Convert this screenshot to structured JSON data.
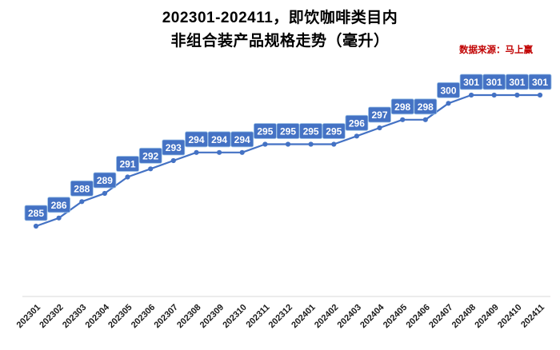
{
  "title": {
    "line1": "202301-202411，即饮咖啡类目内",
    "line2": "非组合装产品规格走势（毫升）"
  },
  "source": {
    "text": "数据来源：马上赢",
    "color": "#C00000"
  },
  "chart_data": {
    "type": "line",
    "title": "202301-202411，即饮咖啡类目内非组合装产品规格走势（毫升）",
    "xlabel": "",
    "ylabel": "毫升",
    "categories": [
      "202301",
      "202302",
      "202303",
      "202304",
      "202305",
      "202306",
      "202307",
      "202308",
      "202309",
      "202310",
      "202311",
      "202312",
      "202401",
      "202402",
      "202403",
      "202404",
      "202405",
      "202406",
      "202407",
      "202408",
      "202409",
      "202410",
      "202411"
    ],
    "values": [
      285,
      286,
      288,
      289,
      291,
      292,
      293,
      294,
      294,
      294,
      295,
      295,
      295,
      295,
      296,
      297,
      298,
      298,
      300,
      301,
      301,
      301,
      301
    ],
    "ylim": [
      284,
      302
    ],
    "grid": false,
    "legend": "none",
    "data_labels": true,
    "colors": {
      "line": "#4472C4",
      "marker": "#4472C4",
      "label_bg": "#4472C4",
      "label_border": "#9DC3E6",
      "label_text": "#FFFFFF",
      "axis_line": "#D9D9D9",
      "tick_text": "#1a1a1a"
    }
  }
}
